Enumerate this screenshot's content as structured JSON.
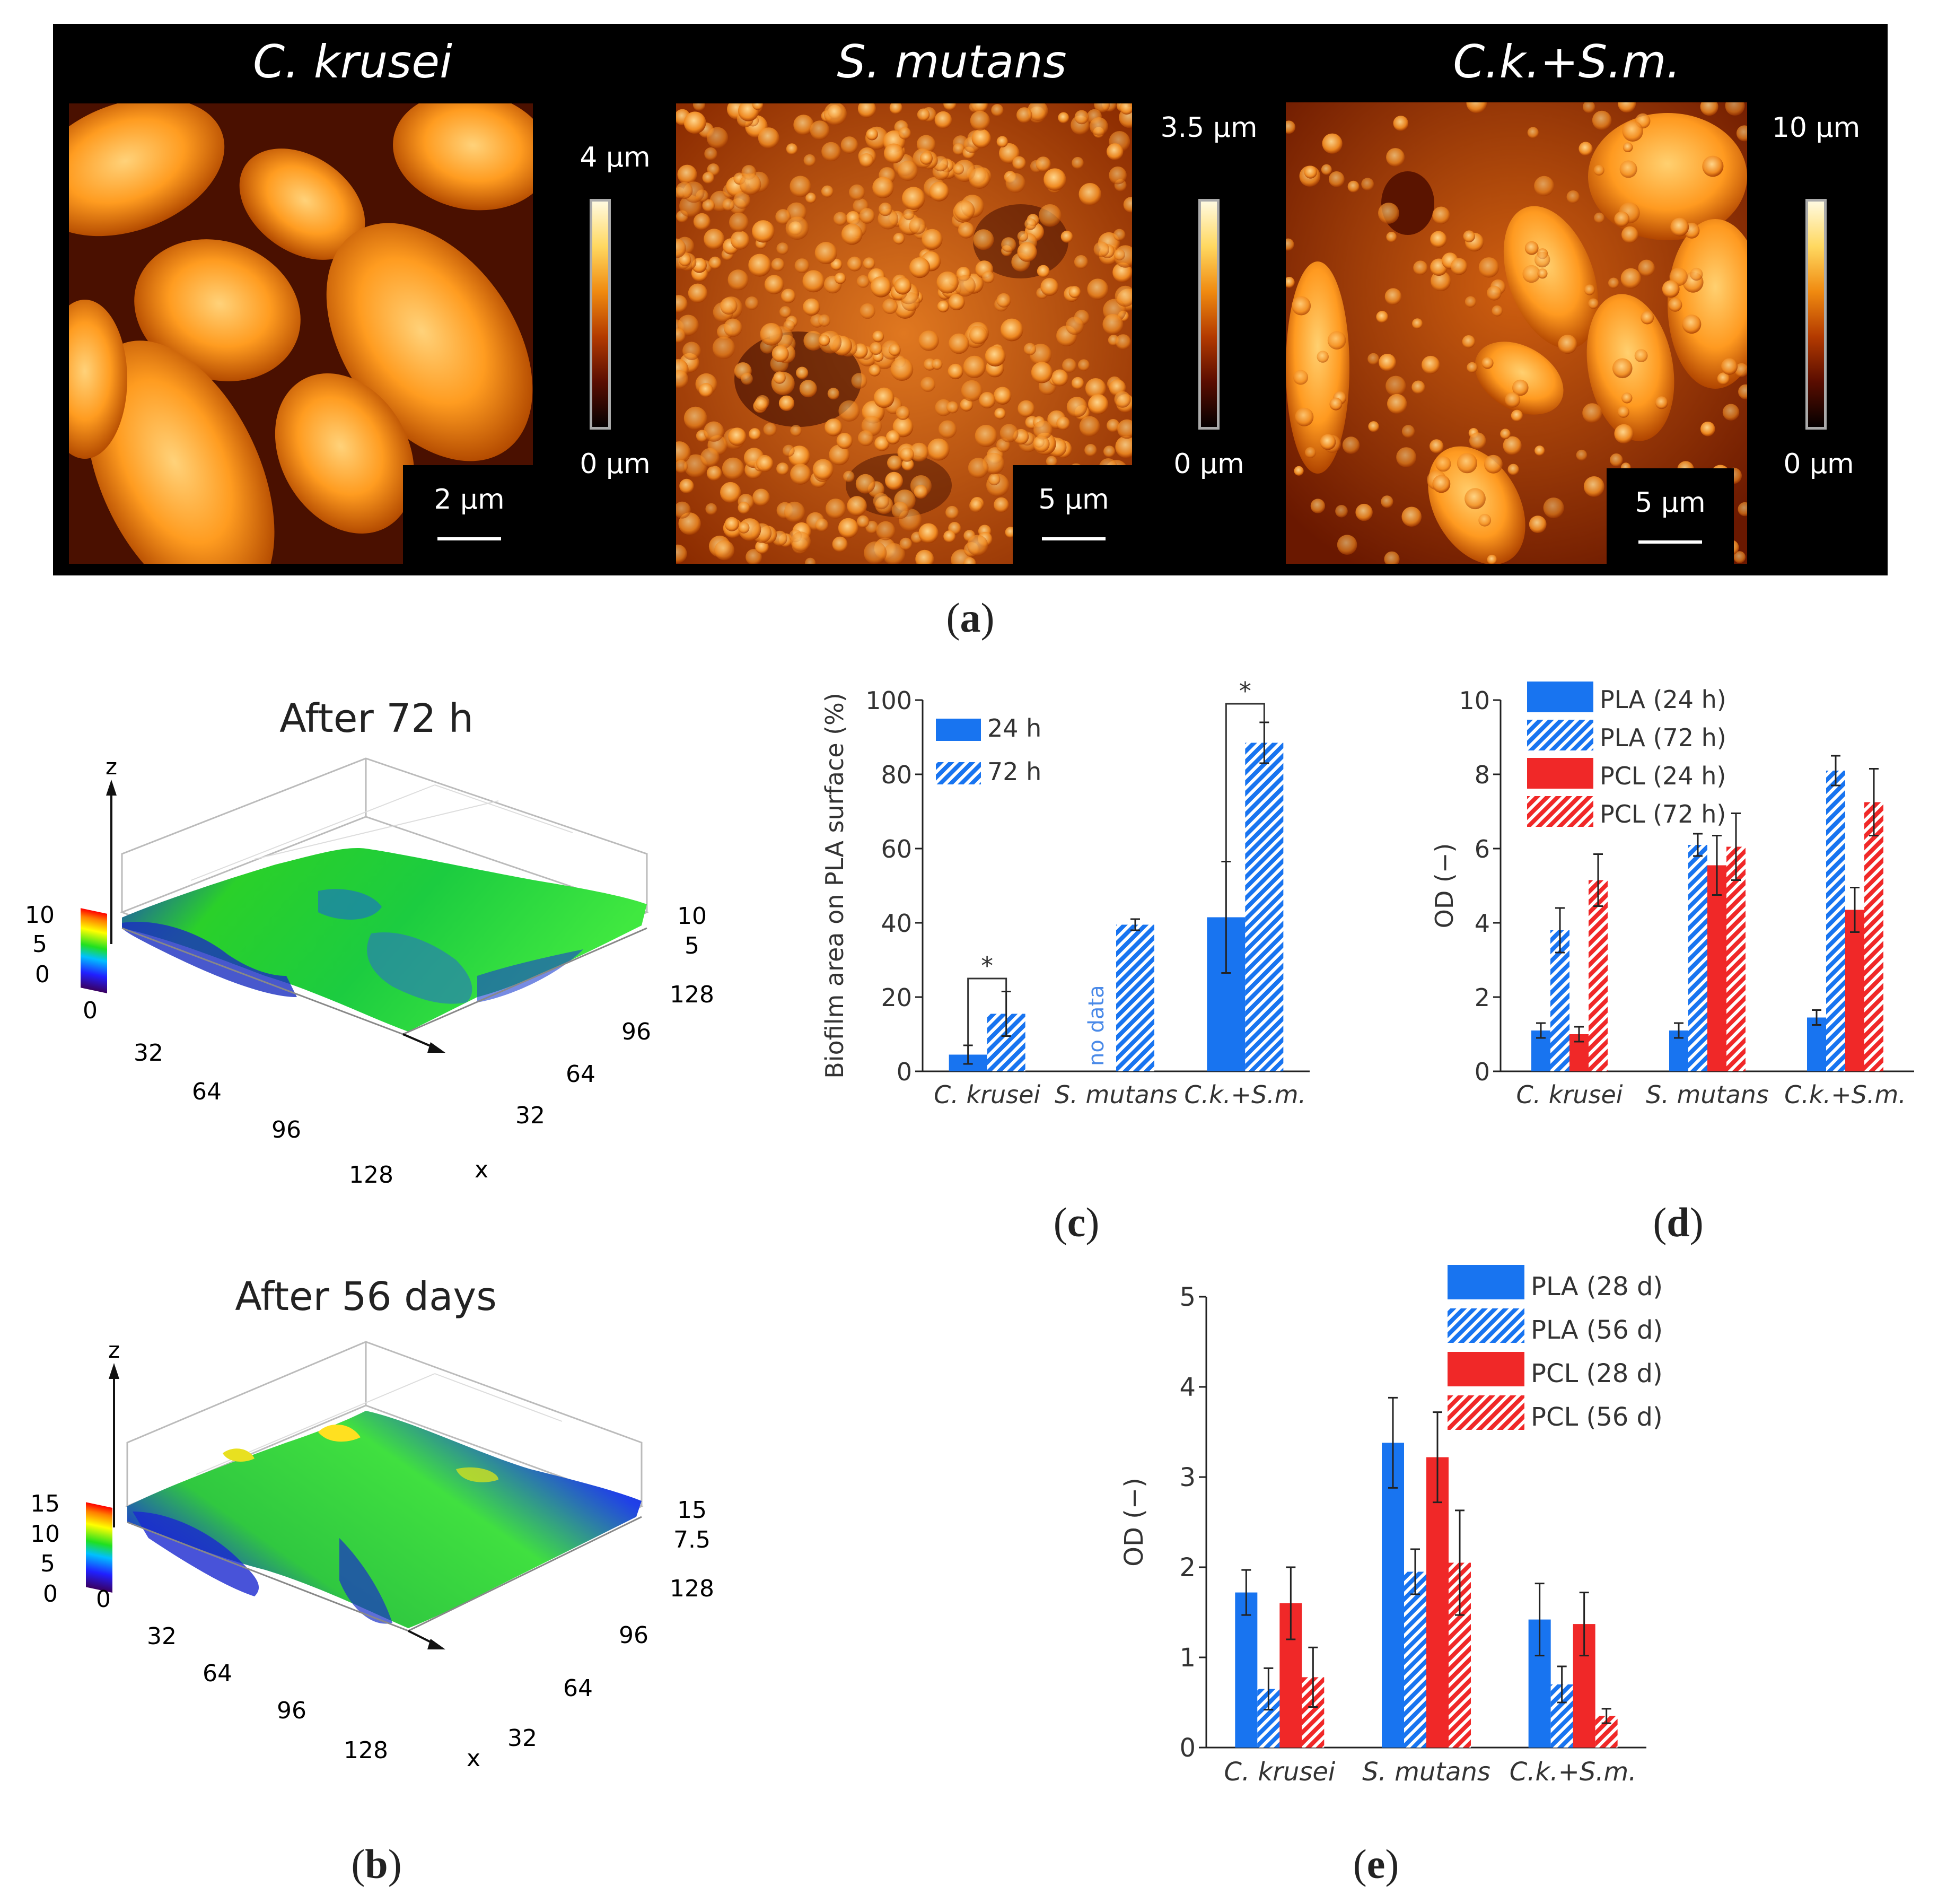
{
  "panel_labels": {
    "a": "(a)",
    "b": "(b)",
    "c": "(c)",
    "d": "(d)",
    "e": "(e)"
  },
  "afm": {
    "titles": [
      "C. krusei",
      "S. mutans",
      "C.k.+S.m."
    ],
    "scale_bars": [
      "2 µm",
      "5 µm",
      "5 µm"
    ],
    "colorbar_top": [
      "4 µm",
      "3.5 µm",
      "10 µm"
    ],
    "colorbar_bottom": [
      "0 µm",
      "0 µm",
      "0 µm"
    ],
    "colors": {
      "dark": "#1a0500",
      "mid": "#c04a00",
      "light": "#ffc060"
    }
  },
  "surface_plots": [
    {
      "title": "After 72 h",
      "z_axis_label": "z",
      "x_axis_label": "x",
      "left_z_ticks": [
        "10",
        "5",
        "0"
      ],
      "right_z_ticks": [
        "10",
        "5"
      ],
      "front_ticks": [
        "0",
        "32",
        "64",
        "96",
        "128"
      ],
      "right_ticks": [
        "128",
        "96",
        "64",
        "32"
      ]
    },
    {
      "title": "After 56 days",
      "z_axis_label": "z",
      "x_axis_label": "x",
      "left_z_ticks": [
        "15",
        "10",
        "5",
        "0"
      ],
      "right_z_ticks": [
        "15",
        "7.5"
      ],
      "front_ticks": [
        "0",
        "32",
        "64",
        "96",
        "128"
      ],
      "right_ticks": [
        "128",
        "96",
        "64",
        "32"
      ]
    }
  ],
  "chart_data": [
    {
      "id": "c",
      "type": "bar",
      "ylabel": "Biofilm area on PLA surface (%)",
      "xlabel": "",
      "ylim": [
        0,
        100
      ],
      "yticks": [
        0,
        20,
        40,
        60,
        80,
        100
      ],
      "categories": [
        "C. krusei",
        "S. mutans",
        "C.k.+S.m."
      ],
      "series": [
        {
          "name": "24 h",
          "values": [
            4.5,
            null,
            41.5
          ],
          "errors": [
            2.5,
            null,
            15
          ],
          "color": "#1874f0",
          "hatched": false
        },
        {
          "name": "72 h",
          "values": [
            15.5,
            39.5,
            88.5
          ],
          "errors": [
            6,
            1.5,
            5.5
          ],
          "color": "#1874f0",
          "hatched": true
        }
      ],
      "annotations": [
        "*",
        "*",
        "no data"
      ]
    },
    {
      "id": "d",
      "type": "bar",
      "ylabel": "OD (−)",
      "xlabel": "",
      "ylim": [
        0,
        10
      ],
      "yticks": [
        0,
        2,
        4,
        6,
        8,
        10
      ],
      "categories": [
        "C. krusei",
        "S. mutans",
        "C.k.+S.m."
      ],
      "series": [
        {
          "name": "PLA (24 h)",
          "values": [
            1.1,
            1.1,
            1.45
          ],
          "errors": [
            0.2,
            0.2,
            0.2
          ],
          "color": "#1874f0",
          "hatched": false
        },
        {
          "name": "PLA (72 h)",
          "values": [
            3.8,
            6.1,
            8.1
          ],
          "errors": [
            0.6,
            0.3,
            0.4
          ],
          "color": "#1874f0",
          "hatched": true
        },
        {
          "name": "PCL (24 h)",
          "values": [
            1.0,
            5.55,
            4.35
          ],
          "errors": [
            0.2,
            0.8,
            0.6
          ],
          "color": "#f02828",
          "hatched": false
        },
        {
          "name": "PCL (72 h)",
          "values": [
            5.15,
            6.05,
            7.25
          ],
          "errors": [
            0.7,
            0.9,
            0.9
          ],
          "color": "#f02828",
          "hatched": true
        }
      ]
    },
    {
      "id": "e",
      "type": "bar",
      "ylabel": "OD (−)",
      "xlabel": "",
      "ylim": [
        0,
        5
      ],
      "yticks": [
        0,
        1,
        2,
        3,
        4,
        5
      ],
      "categories": [
        "C. krusei",
        "S. mutans",
        "C.k.+S.m."
      ],
      "series": [
        {
          "name": "PLA (28 d)",
          "values": [
            1.72,
            3.38,
            1.42
          ],
          "errors": [
            0.25,
            0.5,
            0.4
          ],
          "color": "#1874f0",
          "hatched": false
        },
        {
          "name": "PLA (56 d)",
          "values": [
            0.65,
            1.95,
            0.7
          ],
          "errors": [
            0.23,
            0.25,
            0.2
          ],
          "color": "#1874f0",
          "hatched": true
        },
        {
          "name": "PCL (28 d)",
          "values": [
            1.6,
            3.22,
            1.37
          ],
          "errors": [
            0.4,
            0.5,
            0.35
          ],
          "color": "#f02828",
          "hatched": false
        },
        {
          "name": "PCL (56 d)",
          "values": [
            0.78,
            2.05,
            0.35
          ],
          "errors": [
            0.33,
            0.58,
            0.08
          ],
          "color": "#f02828",
          "hatched": true
        }
      ]
    }
  ]
}
